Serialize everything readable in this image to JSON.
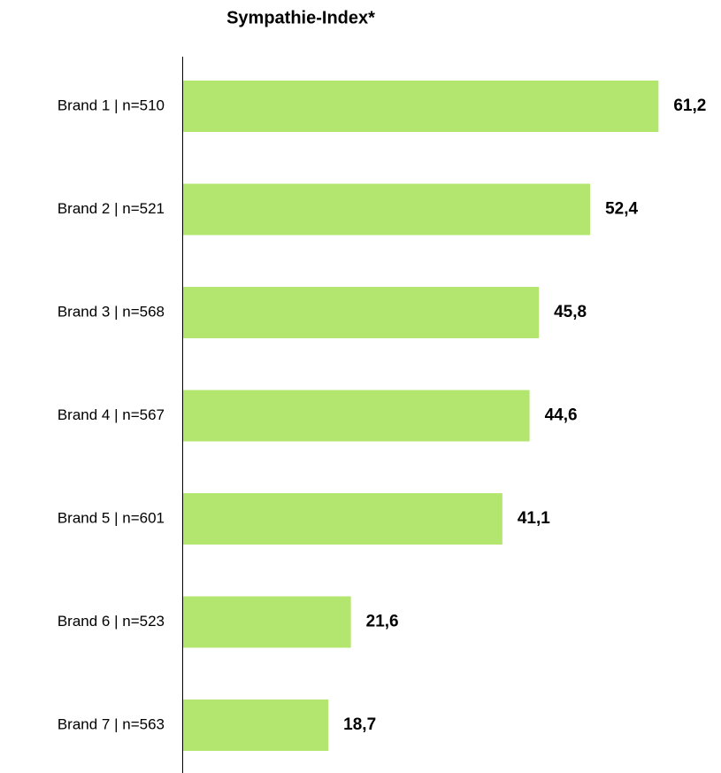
{
  "chart_data": {
    "type": "bar",
    "orientation": "horizontal",
    "title": "Sympathie-Index*",
    "categories": [
      "Brand 1 | n=510",
      "Brand 2 | n=521",
      "Brand 3 | n=568",
      "Brand 4 | n=567",
      "Brand 5 | n=601",
      "Brand 6 | n=523",
      "Brand 7 | n=563"
    ],
    "values": [
      61.2,
      52.4,
      45.8,
      44.6,
      41.1,
      21.6,
      18.7
    ],
    "value_labels": [
      "61,2",
      "52,4",
      "45,8",
      "44,6",
      "41,1",
      "21,6",
      "18,7"
    ],
    "color": "#b3e66e"
  }
}
